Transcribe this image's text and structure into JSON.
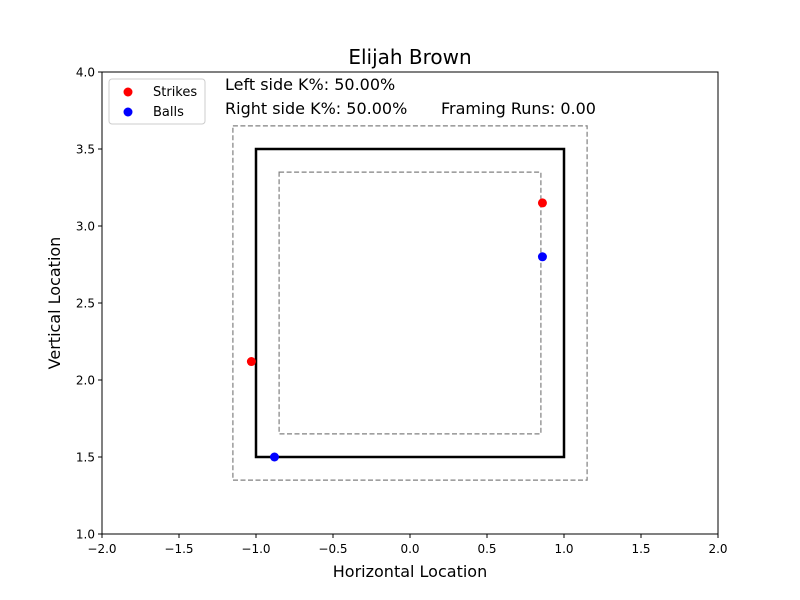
{
  "chart_data": {
    "type": "scatter",
    "title": "Elijah Brown",
    "xlabel": "Horizontal Location",
    "ylabel": "Vertical Location",
    "xlim": [
      -2.0,
      2.0
    ],
    "ylim": [
      1.0,
      4.0
    ],
    "xticks": [
      "−2.0",
      "−1.5",
      "−1.0",
      "−0.5",
      "0.0",
      "0.5",
      "1.0",
      "1.5",
      "2.0"
    ],
    "xtick_values": [
      -2.0,
      -1.5,
      -1.0,
      -0.5,
      0.0,
      0.5,
      1.0,
      1.5,
      2.0
    ],
    "yticks": [
      "1.0",
      "1.5",
      "2.0",
      "2.5",
      "3.0",
      "3.5",
      "4.0"
    ],
    "ytick_values": [
      1.0,
      1.5,
      2.0,
      2.5,
      3.0,
      3.5,
      4.0
    ],
    "grid": false,
    "legend_position": "top-left",
    "series": [
      {
        "name": "Strikes",
        "color": "#ff0000",
        "points": [
          {
            "x": 0.86,
            "y": 3.15
          },
          {
            "x": -1.03,
            "y": 2.12
          }
        ]
      },
      {
        "name": "Balls",
        "color": "#0000ff",
        "points": [
          {
            "x": 0.86,
            "y": 2.8
          },
          {
            "x": -0.88,
            "y": 1.5
          }
        ]
      }
    ],
    "zones": [
      {
        "name": "strike-zone",
        "x": [
          -1.0,
          1.0
        ],
        "y": [
          1.5,
          3.5
        ],
        "style": "solid",
        "color": "#000000"
      },
      {
        "name": "outer-zone",
        "x": [
          -1.15,
          1.15
        ],
        "y": [
          1.35,
          3.65
        ],
        "style": "dashed",
        "color": "#808080"
      },
      {
        "name": "inner-zone",
        "x": [
          -0.85,
          0.85
        ],
        "y": [
          1.65,
          3.35
        ],
        "style": "dashed",
        "color": "#808080"
      }
    ],
    "annotations": {
      "left_k": "Left side K%: 50.00%",
      "right_k": "Right side K%: 50.00%",
      "framing": "Framing Runs: 0.00"
    }
  }
}
